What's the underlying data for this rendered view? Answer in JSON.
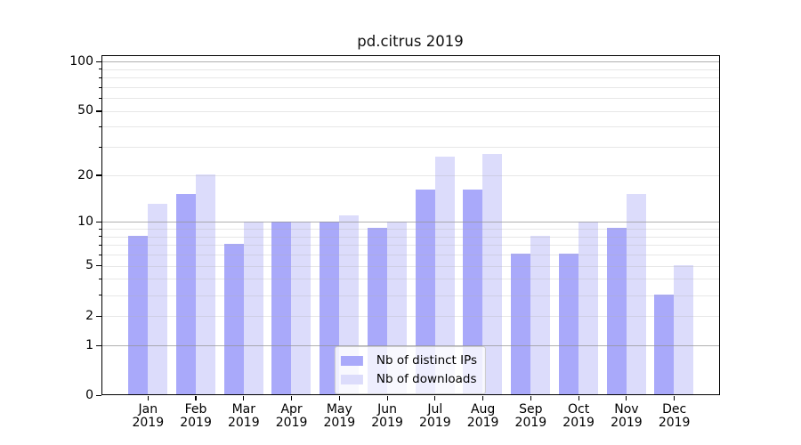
{
  "chart_data": {
    "type": "bar",
    "title": "pd.citrus 2019",
    "x": {
      "months": [
        "Jan",
        "Feb",
        "Mar",
        "Apr",
        "May",
        "Jun",
        "Jul",
        "Aug",
        "Sep",
        "Oct",
        "Nov",
        "Dec"
      ],
      "year_line": "2019"
    },
    "series": [
      {
        "name": "Nb of distinct IPs",
        "color": "#a9a9fa",
        "values": [
          8,
          15,
          7,
          10,
          10,
          9,
          16,
          16,
          6,
          6,
          9,
          3
        ]
      },
      {
        "name": "Nb of downloads",
        "color": "#dcdcfb",
        "values": [
          13,
          20,
          10,
          10,
          11,
          10,
          26,
          27,
          8,
          10,
          15,
          5
        ]
      }
    ],
    "y_axis": {
      "scale": "log10(value+1)",
      "tick_labels": [
        0,
        1,
        2,
        5,
        10,
        20,
        50,
        100
      ],
      "major_grid_values": [
        1,
        10,
        100
      ],
      "minor_grid_values": [
        2,
        3,
        4,
        5,
        6,
        7,
        8,
        9,
        20,
        30,
        40,
        50,
        60,
        70,
        80,
        90
      ],
      "ylim": [
        0,
        110
      ]
    },
    "legend": {
      "position": "lower center",
      "items": [
        "Nb of distinct IPs",
        "Nb of downloads"
      ]
    },
    "grid": true,
    "xlabel": "",
    "ylabel": ""
  },
  "colors": {
    "bar_distinct_ips": "#a9a9fa",
    "bar_downloads": "#dcdcfb",
    "major_grid": "rgba(150,150,150,0.75)",
    "minor_grid": "rgba(176,176,176,0.30)",
    "spine": "#000000",
    "text": "#000000",
    "legend_border": "#cccccc",
    "legend_background": "rgba(255,255,255,0.8)"
  }
}
